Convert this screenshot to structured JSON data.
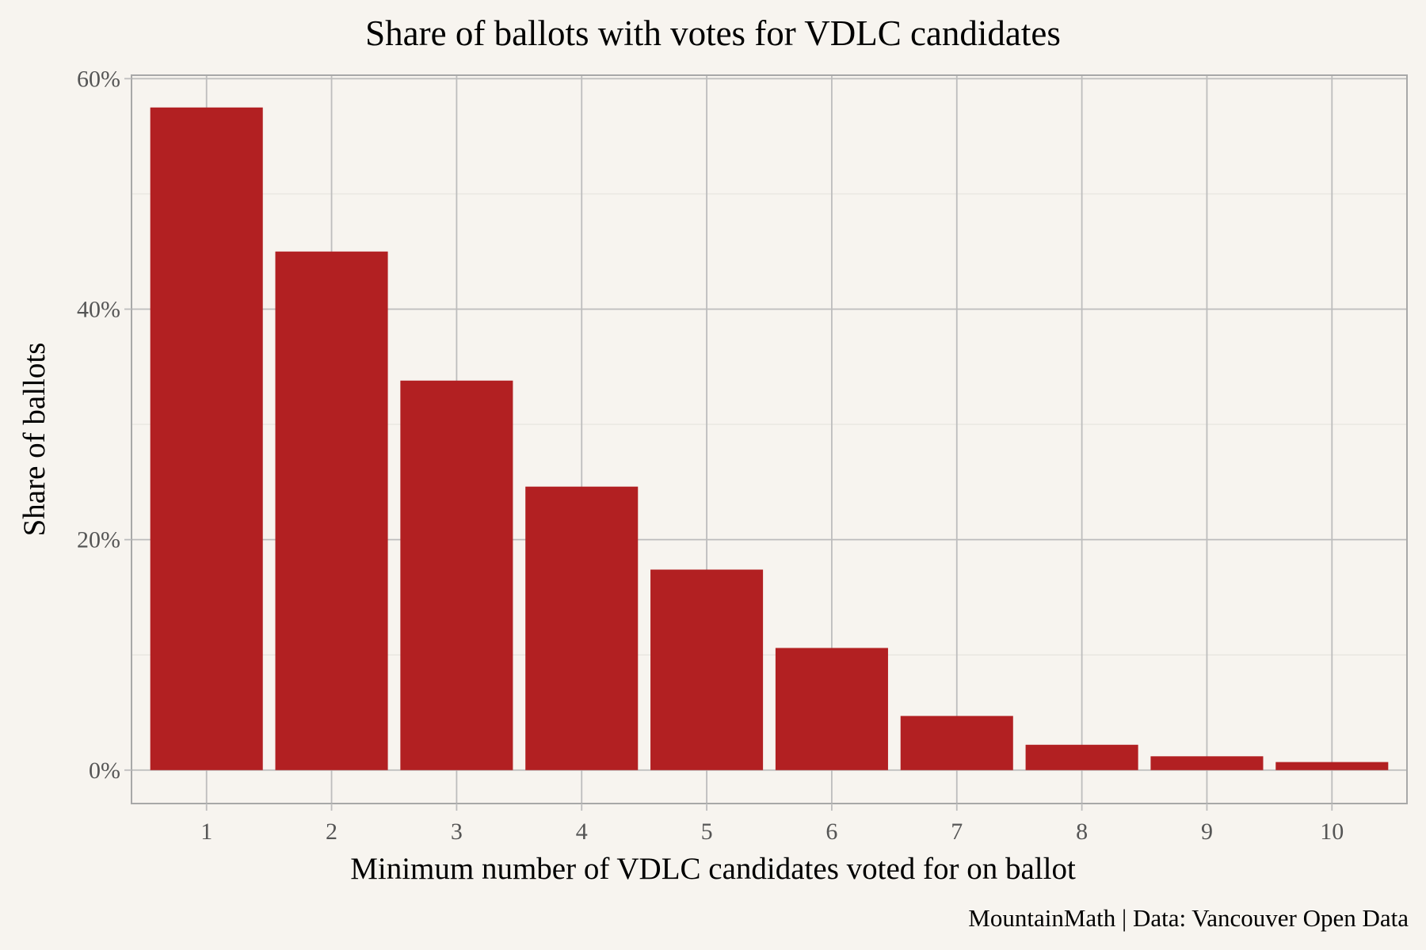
{
  "chart_data": {
    "type": "bar",
    "title": "Share of ballots with votes for VDLC candidates",
    "xlabel": "Minimum number of VDLC candidates voted for on ballot",
    "ylabel": "Share of ballots",
    "caption": "MountainMath | Data: Vancouver Open Data",
    "categories": [
      "1",
      "2",
      "3",
      "4",
      "5",
      "6",
      "7",
      "8",
      "9",
      "10"
    ],
    "values": [
      57.5,
      45.0,
      33.8,
      24.6,
      17.4,
      10.6,
      4.7,
      2.2,
      1.2,
      0.7
    ],
    "ylim": [
      -2.9,
      60.3
    ],
    "yticks": [
      0,
      20,
      40,
      60
    ],
    "ytick_labels": [
      "0%",
      "20%",
      "40%",
      "60%"
    ],
    "grid": true,
    "colors": {
      "bar": "#b22022",
      "background": "#f7f4ef",
      "grid_major": "#bdbdbd",
      "grid_minor": "#e6e3de",
      "border": "#a8a8a8"
    }
  }
}
